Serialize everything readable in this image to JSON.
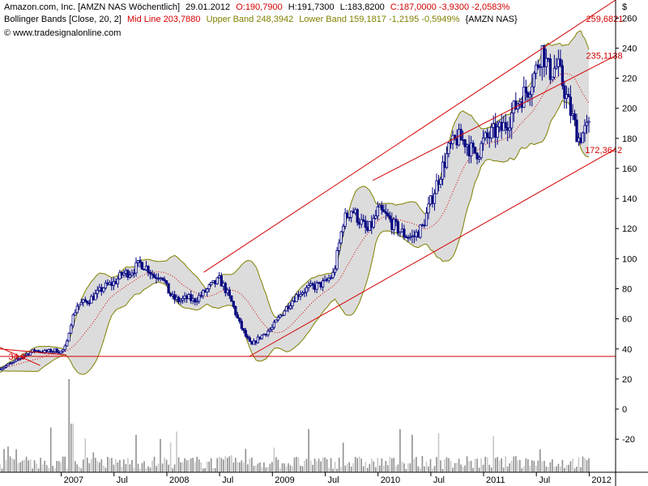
{
  "header": {
    "line1": {
      "name": "Amazon.com, Inc. [AMZN NAS  Wöchentlich]",
      "date": "29.01.2012",
      "open": "O:190,7900",
      "high": "H:191,7300",
      "low": "L:183,8200",
      "close": "C:187,0000 -3,9300 -2,0583%"
    },
    "line2": {
      "indicator": "Bollinger Bands [Close, 20, 2]",
      "mid": "Mid Line 203,7880",
      "upper": "Upper Band 248,3942",
      "lower": "Lower Band 159,1817 -1,2195 -0,5949%",
      "symbol": "{AMZN NAS}"
    },
    "line3": {
      "watermark": "© www.tradesignalonline.com"
    }
  },
  "colors": {
    "candle": "#000080",
    "band_fill": "#dcdcdc",
    "band_line": "#808000",
    "mid_line": "#d40000",
    "trend": "#d40000",
    "volume": "#909090",
    "volume_hi": "#c8c8c8",
    "header_black": "#000000",
    "header_red": "#d40000",
    "header_olive": "#808000"
  },
  "chart_data": {
    "type": "candlestick",
    "currency": "$",
    "y_ticks": [
      -20,
      0,
      20,
      40,
      60,
      80,
      100,
      120,
      140,
      160,
      180,
      200,
      220,
      240,
      260
    ],
    "ylim": [
      -42,
      272
    ],
    "x_ticks": [
      {
        "label": "2007",
        "t": 2007.0
      },
      {
        "label": "Jul",
        "t": 2007.5
      },
      {
        "label": "2008",
        "t": 2008.0
      },
      {
        "label": "Jul",
        "t": 2008.5
      },
      {
        "label": "2009",
        "t": 2009.0
      },
      {
        "label": "Jul",
        "t": 2009.5
      },
      {
        "label": "2010",
        "t": 2010.0
      },
      {
        "label": "Jul",
        "t": 2010.5
      },
      {
        "label": "2011",
        "t": 2011.0
      },
      {
        "label": "Jul",
        "t": 2011.5
      },
      {
        "label": "2012",
        "t": 2012.0
      }
    ],
    "xlim": [
      2006.42,
      2012.25
    ],
    "price_path": [
      [
        2006.42,
        27
      ],
      [
        2006.55,
        31
      ],
      [
        2006.65,
        36
      ],
      [
        2006.75,
        39
      ],
      [
        2006.85,
        38
      ],
      [
        2006.95,
        39
      ],
      [
        2007.0,
        38
      ],
      [
        2007.05,
        42
      ],
      [
        2007.08,
        55
      ],
      [
        2007.15,
        69
      ],
      [
        2007.25,
        72
      ],
      [
        2007.33,
        76
      ],
      [
        2007.4,
        81
      ],
      [
        2007.5,
        84
      ],
      [
        2007.58,
        90
      ],
      [
        2007.65,
        91
      ],
      [
        2007.75,
        97
      ],
      [
        2007.83,
        93
      ],
      [
        2007.88,
        88
      ],
      [
        2007.95,
        90
      ],
      [
        2008.0,
        80
      ],
      [
        2008.05,
        74
      ],
      [
        2008.12,
        72
      ],
      [
        2008.2,
        74
      ],
      [
        2008.25,
        72
      ],
      [
        2008.33,
        76
      ],
      [
        2008.42,
        82
      ],
      [
        2008.5,
        86
      ],
      [
        2008.55,
        80
      ],
      [
        2008.62,
        70
      ],
      [
        2008.68,
        58
      ],
      [
        2008.75,
        48
      ],
      [
        2008.8,
        42
      ],
      [
        2008.85,
        46
      ],
      [
        2008.92,
        50
      ],
      [
        2009.0,
        54
      ],
      [
        2009.08,
        63
      ],
      [
        2009.17,
        71
      ],
      [
        2009.25,
        77
      ],
      [
        2009.33,
        80
      ],
      [
        2009.42,
        82
      ],
      [
        2009.5,
        84
      ],
      [
        2009.58,
        90
      ],
      [
        2009.62,
        105
      ],
      [
        2009.67,
        125
      ],
      [
        2009.75,
        133
      ],
      [
        2009.83,
        125
      ],
      [
        2009.9,
        118
      ],
      [
        2009.96,
        125
      ],
      [
        2010.0,
        132
      ],
      [
        2010.08,
        128
      ],
      [
        2010.15,
        122
      ],
      [
        2010.25,
        116
      ],
      [
        2010.33,
        114
      ],
      [
        2010.42,
        121
      ],
      [
        2010.5,
        138
      ],
      [
        2010.58,
        155
      ],
      [
        2010.67,
        172
      ],
      [
        2010.75,
        180
      ],
      [
        2010.83,
        178
      ],
      [
        2010.9,
        170
      ],
      [
        2010.96,
        172
      ],
      [
        2011.0,
        178
      ],
      [
        2011.08,
        183
      ],
      [
        2011.17,
        186
      ],
      [
        2011.25,
        194
      ],
      [
        2011.33,
        205
      ],
      [
        2011.42,
        213
      ],
      [
        2011.5,
        226
      ],
      [
        2011.55,
        240
      ],
      [
        2011.62,
        224
      ],
      [
        2011.7,
        228
      ],
      [
        2011.75,
        216
      ],
      [
        2011.83,
        196
      ],
      [
        2011.9,
        180
      ],
      [
        2011.96,
        185
      ],
      [
        2012.0,
        187
      ]
    ],
    "bollinger": {
      "period": 20,
      "deviation": 2,
      "mid": "203,7880",
      "upper": "248,3942",
      "lower": "159,1817"
    },
    "trend_lines": [
      {
        "from": [
          2008.78,
          35
        ],
        "to": [
          2012.25,
          173
        ]
      },
      {
        "from": [
          2008.35,
          91
        ],
        "to": [
          2012.25,
          272
        ]
      },
      {
        "from": [
          2009.95,
          152
        ],
        "to": [
          2012.25,
          235
        ]
      },
      {
        "from": [
          2006.42,
          35
        ],
        "to": [
          2012.25,
          35
        ]
      },
      {
        "from": [
          2006.42,
          41
        ],
        "to": [
          2006.8,
          29
        ]
      },
      {
        "from": [
          2006.42,
          40
        ],
        "to": [
          2007.05,
          36
        ]
      }
    ],
    "level_labels": [
      {
        "text": "259,6821",
        "t": 2011.97,
        "y": 259.7
      },
      {
        "text": "235,1138",
        "t": 2011.97,
        "y": 235.1
      },
      {
        "text": "172,3642",
        "t": 2011.96,
        "y": 172.4
      },
      {
        "text": "34,9",
        "t": 2006.5,
        "y": 35
      }
    ]
  }
}
